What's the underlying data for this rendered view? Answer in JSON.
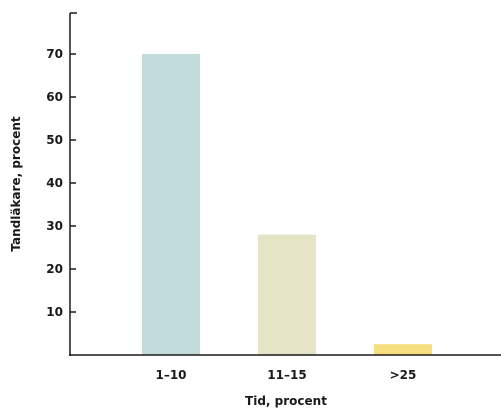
{
  "chart_data": {
    "type": "bar",
    "title": "",
    "xlabel": "Tid, procent",
    "ylabel": "Tandläkare, procent",
    "categories": [
      "1–10",
      "11–15",
      ">25"
    ],
    "values": [
      70,
      28,
      2.5
    ],
    "colors": [
      "#c2dcdc",
      "#e5e4c6",
      "#f6de7e"
    ],
    "yticks": [
      10,
      20,
      30,
      40,
      50,
      60,
      70
    ],
    "ylim": [
      0,
      80
    ],
    "grid": false,
    "legend": "none"
  }
}
